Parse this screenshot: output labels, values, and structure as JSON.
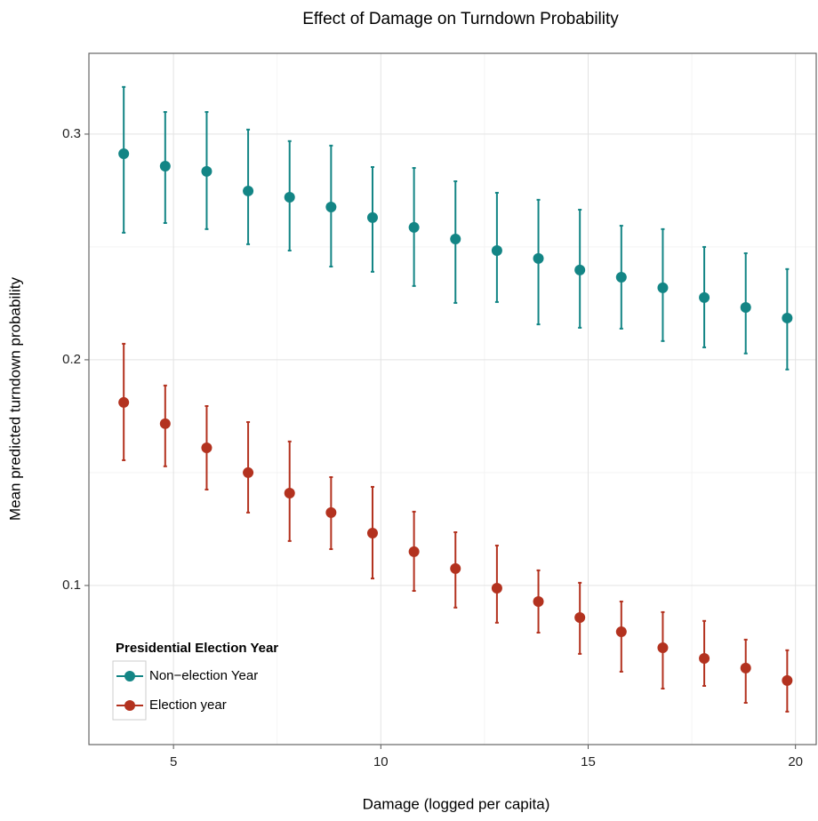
{
  "chart_data": {
    "type": "errorbar-scatter",
    "title": "Effect of Damage on Turndown Probability",
    "x_label": "Damage (logged per capita)",
    "y_label": "Mean predicted turndown probability",
    "xlim": [
      2.96,
      20.5
    ],
    "xticks": [
      5,
      10,
      15,
      20
    ],
    "ylim": [
      0.0295,
      0.3358
    ],
    "yticks": [
      0.1,
      0.2,
      0.3
    ],
    "grid": true,
    "legend_title": "Presidential Election Year",
    "legend_position": "bottom-left",
    "x": [
      3.8,
      4.8,
      5.8,
      6.8,
      7.8,
      8.8,
      9.8,
      10.8,
      11.8,
      12.8,
      13.8,
      14.8,
      15.8,
      16.8,
      17.8,
      18.8,
      19.8
    ],
    "series": [
      {
        "name": "Non−election Year",
        "color": "#138585",
        "values": [
          0.2913,
          0.2858,
          0.2835,
          0.2748,
          0.272,
          0.2677,
          0.263,
          0.2587,
          0.2535,
          0.2484,
          0.2449,
          0.2398,
          0.2366,
          0.2319,
          0.2276,
          0.2232,
          0.2185
        ],
        "lower": [
          0.2563,
          0.2606,
          0.2579,
          0.2512,
          0.2484,
          0.2413,
          0.239,
          0.2327,
          0.2252,
          0.2256,
          0.2157,
          0.2142,
          0.2138,
          0.2083,
          0.2055,
          0.2028,
          0.1957
        ],
        "upper": [
          0.3209,
          0.3098,
          0.3098,
          0.302,
          0.2969,
          0.2949,
          0.2854,
          0.285,
          0.2791,
          0.274,
          0.2709,
          0.2665,
          0.2594,
          0.2579,
          0.25,
          0.2472,
          0.2402
        ]
      },
      {
        "name": "Election year",
        "color": "#b3321f",
        "values": [
          0.1811,
          0.1717,
          0.161,
          0.15,
          0.1409,
          0.1323,
          0.1232,
          0.115,
          0.1075,
          0.0988,
          0.0929,
          0.0858,
          0.0795,
          0.0724,
          0.0677,
          0.0634,
          0.0579
        ],
        "lower": [
          0.1555,
          0.1528,
          0.1425,
          0.1323,
          0.1197,
          0.1161,
          0.1031,
          0.0976,
          0.0902,
          0.0835,
          0.0791,
          0.0697,
          0.0618,
          0.0543,
          0.0555,
          0.048,
          0.0441
        ],
        "upper": [
          0.2071,
          0.1886,
          0.1795,
          0.1724,
          0.1638,
          0.148,
          0.1437,
          0.1327,
          0.1236,
          0.1177,
          0.1067,
          0.1012,
          0.0929,
          0.0882,
          0.0843,
          0.076,
          0.0713
        ]
      }
    ]
  }
}
